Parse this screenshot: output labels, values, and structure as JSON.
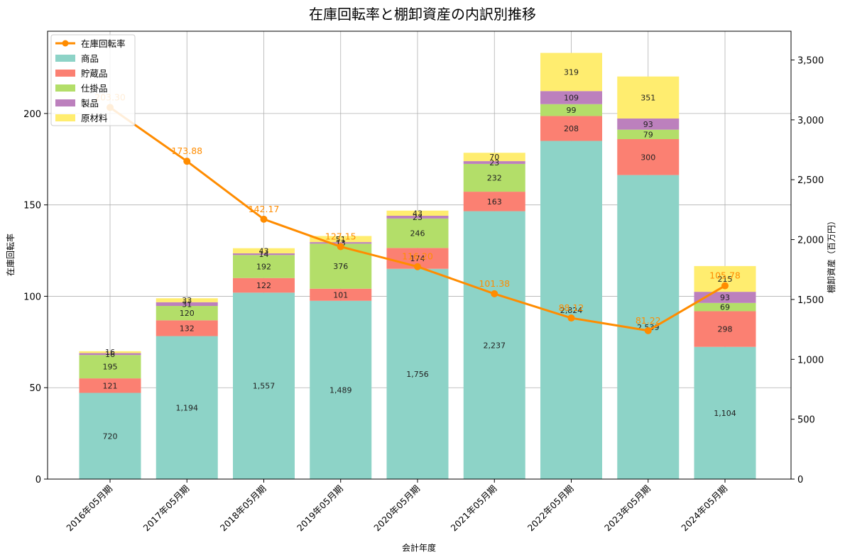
{
  "chart_data": {
    "type": "bar",
    "title": "在庫回転率と棚卸資産の内訳別推移",
    "xlabel": "会計年度",
    "ylabel_left": "在庫回転率",
    "ylabel_right": "棚卸資産（百万円）",
    "categories": [
      "2016年05月期",
      "2017年05月期",
      "2018年05月期",
      "2019年05月期",
      "2020年05月期",
      "2021年05月期",
      "2022年05月期",
      "2023年05月期",
      "2024年05月期"
    ],
    "bar_series": [
      {
        "name": "商品",
        "color": "#8dd3c7",
        "values": [
          720,
          1194,
          1557,
          1489,
          1756,
          2237,
          2824,
          2539,
          1104
        ]
      },
      {
        "name": "貯蔵品",
        "color": "#fb8072",
        "values": [
          121,
          132,
          122,
          101,
          174,
          163,
          208,
          300,
          298
        ]
      },
      {
        "name": "仕掛品",
        "color": "#b3de69",
        "values": [
          195,
          120,
          192,
          376,
          246,
          232,
          99,
          79,
          69
        ]
      },
      {
        "name": "製品",
        "color": "#bc80bd",
        "values": [
          16,
          31,
          14,
          13,
          23,
          23,
          109,
          93,
          93
        ]
      },
      {
        "name": "原材料",
        "color": "#ffed6f",
        "values": [
          16,
          33,
          43,
          51,
          43,
          70,
          319,
          351,
          215
        ]
      }
    ],
    "line_series": {
      "name": "在庫回転率",
      "color": "#ff8c00",
      "values": [
        203.3,
        173.88,
        142.17,
        127.15,
        116.2,
        101.38,
        88.12,
        81.22,
        105.78
      ],
      "labels": [
        "203.30",
        "173.88",
        "142.17",
        "127.15",
        "116.20",
        "101.38",
        "88.12",
        "81.22",
        "105.78"
      ]
    },
    "ylim_left": [
      0,
      245
    ],
    "yticks_left": [
      0,
      50,
      100,
      150,
      200
    ],
    "ylim_right": [
      0,
      3740
    ],
    "yticks_right": [
      0,
      500,
      1000,
      1500,
      2000,
      2500,
      3000,
      3500
    ],
    "yticks_right_labels": [
      "0",
      "500",
      "1,000",
      "1,500",
      "2,000",
      "2,500",
      "3,000",
      "3,500"
    ],
    "grid": true,
    "legend_position": "top-left",
    "legend": [
      "在庫回転率",
      "商品",
      "貯蔵品",
      "仕掛品",
      "製品",
      "原材料"
    ]
  }
}
